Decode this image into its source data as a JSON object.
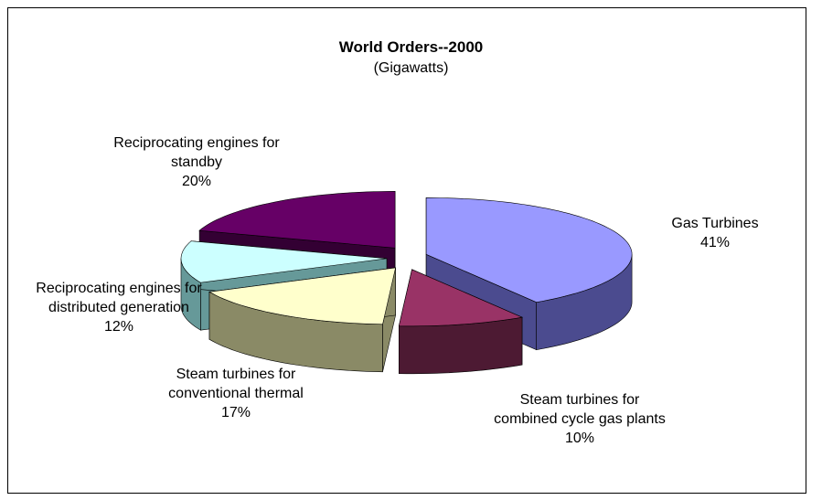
{
  "chart_data": {
    "type": "pie",
    "title": "World Orders--2000",
    "subtitle": "(Gigawatts)",
    "categories": [
      "Gas Turbines",
      "Steam turbines for combined cycle gas plants",
      "Steam turbines for conventional thermal",
      "Reciprocating engines for distributed generation",
      "Reciprocating engines for standby"
    ],
    "values": [
      41,
      10,
      17,
      12,
      20
    ],
    "value_labels": [
      "41%",
      "10%",
      "17%",
      "12%",
      "20%"
    ],
    "colors": [
      "#9999ff",
      "#993366",
      "#ffffcc",
      "#ccffff",
      "#660066"
    ],
    "side_colors": [
      "#4b4b8f",
      "#4d1a33",
      "#8a8a66",
      "#669999",
      "#330033"
    ]
  }
}
